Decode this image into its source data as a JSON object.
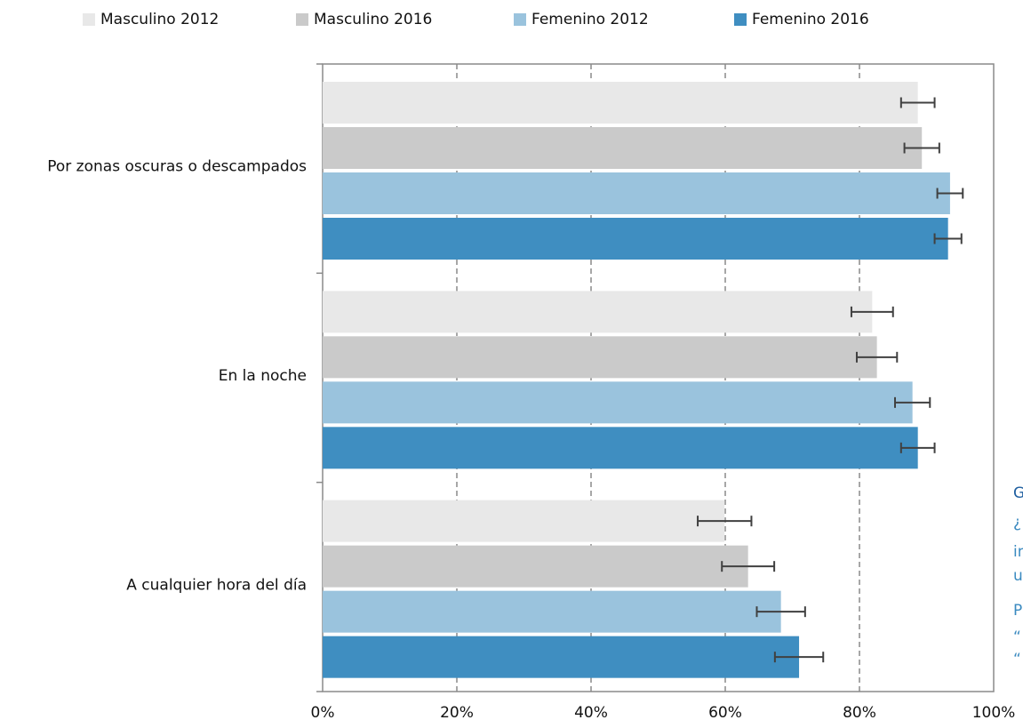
{
  "chart_data": {
    "type": "bar",
    "orientation": "horizontal",
    "categories": [
      "Por zonas oscuras o descampados",
      "En la noche",
      "A cualquier hora del día"
    ],
    "series": [
      {
        "name": "Masculino 2012",
        "color": "#e8e8e8",
        "values": [
          88.7,
          81.9,
          59.9
        ],
        "errors": [
          2.5,
          3.1,
          4.0
        ]
      },
      {
        "name": "Masculino 2016",
        "color": "#cacaca",
        "values": [
          89.3,
          82.6,
          63.4
        ],
        "errors": [
          2.6,
          3.0,
          3.9
        ]
      },
      {
        "name": "Femenino 2012",
        "color": "#9ac3dd",
        "values": [
          93.5,
          87.9,
          68.3
        ],
        "errors": [
          1.9,
          2.6,
          3.6
        ]
      },
      {
        "name": "Femenino 2016",
        "color": "#3f8ec1",
        "values": [
          93.2,
          88.7,
          71.0
        ],
        "errors": [
          2.0,
          2.5,
          3.6
        ]
      }
    ],
    "xlim": [
      0,
      100
    ],
    "xticks": [
      {
        "value": 0,
        "label": "0%"
      },
      {
        "value": 20,
        "label": "20%"
      },
      {
        "value": 40,
        "label": "40%"
      },
      {
        "value": 60,
        "label": "60%"
      },
      {
        "value": 80,
        "label": "80%"
      },
      {
        "value": 100,
        "label": "100%"
      }
    ],
    "grid": true,
    "legend": "top",
    "annotations": [
      "G",
      "¿",
      "in",
      "u",
      "P",
      "“",
      "“"
    ]
  }
}
